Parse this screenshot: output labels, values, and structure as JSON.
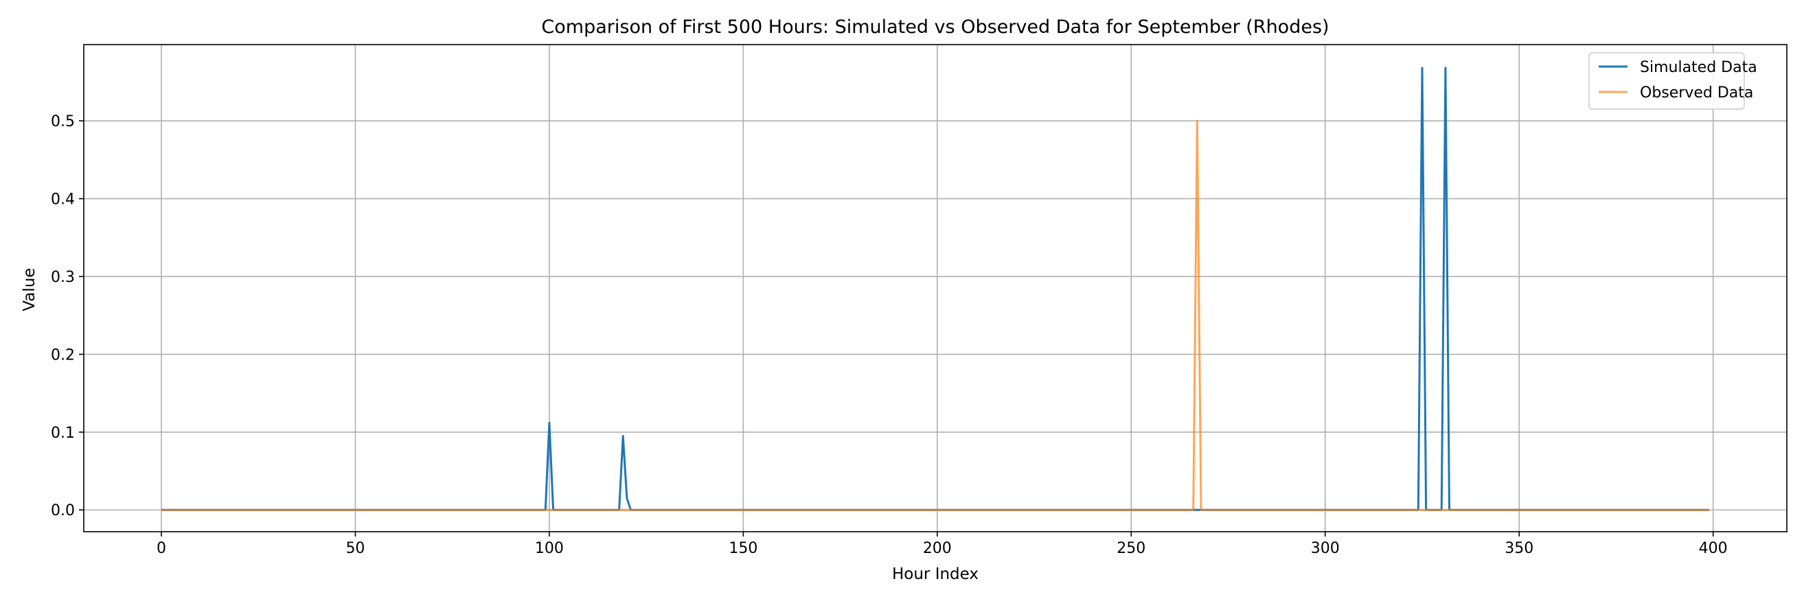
{
  "chart_data": {
    "type": "line",
    "title": "Comparison of First 500 Hours: Simulated vs Observed Data for September (Rhodes)",
    "xlabel": "Hour Index",
    "ylabel": "Value",
    "xlim": [
      -20,
      419
    ],
    "ylim": [
      -0.028,
      0.598
    ],
    "xticks": [
      0,
      50,
      100,
      150,
      200,
      250,
      300,
      350,
      400
    ],
    "yticks": [
      0.0,
      0.1,
      0.2,
      0.3,
      0.4,
      0.5
    ],
    "grid": true,
    "legend_position": "top-right",
    "series": [
      {
        "name": "Simulated Data",
        "color": "#1f77b4",
        "points": [
          [
            0,
            0
          ],
          [
            99,
            0
          ],
          [
            100,
            0.112
          ],
          [
            101,
            0
          ],
          [
            118,
            0
          ],
          [
            119,
            0.095
          ],
          [
            120,
            0.015
          ],
          [
            121,
            0
          ],
          [
            324,
            0
          ],
          [
            325,
            0.568
          ],
          [
            326,
            0
          ],
          [
            330,
            0
          ],
          [
            331,
            0.568
          ],
          [
            332,
            0
          ],
          [
            399,
            0
          ]
        ]
      },
      {
        "name": "Observed Data",
        "color": "#ff7f0e",
        "points": [
          [
            0,
            0
          ],
          [
            266,
            0
          ],
          [
            267,
            0.5
          ],
          [
            268,
            0
          ],
          [
            399,
            0
          ]
        ]
      }
    ]
  }
}
